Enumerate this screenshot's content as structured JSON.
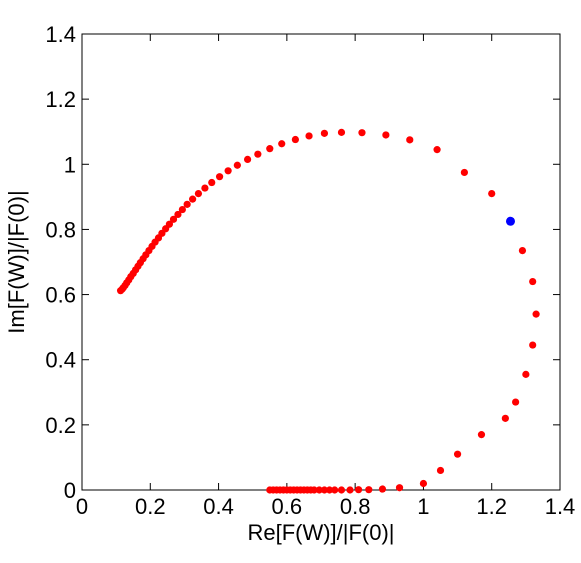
{
  "chart_data": {
    "type": "scatter",
    "xlabel": "Re[F(W)]/|F(0)|",
    "ylabel": "Im[F(W)]/|F(0)|",
    "xlim": [
      0,
      1.4
    ],
    "ylim": [
      0,
      1.4
    ],
    "x_ticks": [
      "0",
      "0.2",
      "0.4",
      "0.6",
      "0.8",
      "1",
      "1.2",
      "1.4"
    ],
    "y_ticks": [
      "0",
      "0.2",
      "0.4",
      "0.6",
      "0.8",
      "1",
      "1.2",
      "1.4"
    ],
    "grid": false,
    "legend": "none",
    "series": [
      {
        "color": "#ff0000",
        "points": [
          [
            0.55,
            0.0
          ],
          [
            0.56,
            0.0
          ],
          [
            0.57,
            0.0
          ],
          [
            0.58,
            0.0
          ],
          [
            0.59,
            0.0
          ],
          [
            0.6,
            0.0
          ],
          [
            0.61,
            0.0
          ],
          [
            0.62,
            0.0
          ],
          [
            0.63,
            0.0
          ],
          [
            0.64,
            0.0
          ],
          [
            0.65,
            0.0
          ],
          [
            0.66,
            0.0
          ],
          [
            0.67,
            0.0
          ],
          [
            0.68,
            0.0
          ],
          [
            0.695,
            0.0
          ],
          [
            0.71,
            0.0
          ],
          [
            0.725,
            0.0
          ],
          [
            0.74,
            0.0
          ],
          [
            0.76,
            0.0
          ],
          [
            0.785,
            0.0
          ],
          [
            0.81,
            0.001
          ],
          [
            0.84,
            0.001
          ],
          [
            0.88,
            0.003
          ],
          [
            0.93,
            0.007
          ],
          [
            1.0,
            0.02
          ],
          [
            1.05,
            0.06
          ],
          [
            1.1,
            0.11
          ],
          [
            1.17,
            0.17
          ],
          [
            1.24,
            0.22
          ],
          [
            1.27,
            0.27
          ],
          [
            1.3,
            0.355
          ],
          [
            1.32,
            0.445
          ],
          [
            1.33,
            0.54
          ],
          [
            1.32,
            0.64
          ],
          [
            1.29,
            0.735
          ],
          [
            1.2,
            0.91
          ],
          [
            1.12,
            0.975
          ],
          [
            1.04,
            1.045
          ],
          [
            0.96,
            1.075
          ],
          [
            0.89,
            1.09
          ],
          [
            0.82,
            1.097
          ],
          [
            0.76,
            1.098
          ],
          [
            0.71,
            1.095
          ],
          [
            0.665,
            1.087
          ],
          [
            0.625,
            1.076
          ],
          [
            0.585,
            1.063
          ],
          [
            0.55,
            1.048
          ],
          [
            0.515,
            1.031
          ],
          [
            0.485,
            1.015
          ],
          [
            0.455,
            0.997
          ],
          [
            0.428,
            0.98
          ],
          [
            0.403,
            0.962
          ],
          [
            0.38,
            0.944
          ],
          [
            0.36,
            0.927
          ],
          [
            0.341,
            0.91
          ],
          [
            0.324,
            0.893
          ],
          [
            0.308,
            0.877
          ],
          [
            0.294,
            0.861
          ],
          [
            0.281,
            0.846
          ],
          [
            0.268,
            0.831
          ],
          [
            0.256,
            0.816
          ],
          [
            0.245,
            0.802
          ],
          [
            0.234,
            0.788
          ],
          [
            0.224,
            0.774
          ],
          [
            0.214,
            0.761
          ],
          [
            0.205,
            0.748
          ],
          [
            0.196,
            0.735
          ],
          [
            0.187,
            0.722
          ],
          [
            0.179,
            0.71
          ],
          [
            0.171,
            0.698
          ],
          [
            0.164,
            0.687
          ],
          [
            0.157,
            0.676
          ],
          [
            0.15,
            0.665
          ],
          [
            0.143,
            0.655
          ],
          [
            0.137,
            0.645
          ],
          [
            0.131,
            0.636
          ],
          [
            0.126,
            0.628
          ],
          [
            0.121,
            0.621
          ],
          [
            0.117,
            0.616
          ],
          [
            0.113,
            0.612
          ]
        ]
      },
      {
        "color": "#0000ff",
        "points": [
          [
            1.255,
            0.825
          ]
        ]
      }
    ]
  }
}
